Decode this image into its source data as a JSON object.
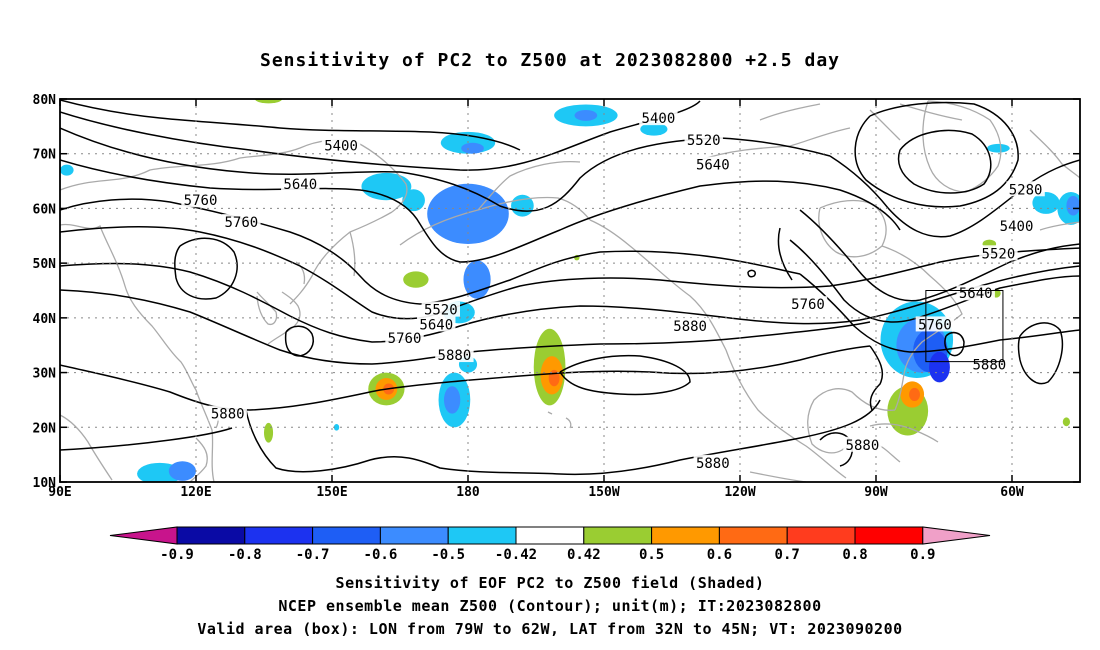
{
  "title": "Sensitivity of PC2 to Z500 at 2023082800 +2.5 day",
  "captions": [
    "Sensitivity of EOF PC2 to Z500 field (Shaded)",
    "NCEP ensemble mean Z500 (Contour); unit(m); IT:2023082800",
    "Valid area (box): LON from 79W to 62W, LAT from 32N to 45N; VT: 2023090200"
  ],
  "map": {
    "lon_range": [
      90,
      315
    ],
    "lat_range": [
      10,
      80
    ],
    "lon_ticks": [
      {
        "lon": 90,
        "label": "90E"
      },
      {
        "lon": 120,
        "label": "120E"
      },
      {
        "lon": 150,
        "label": "150E"
      },
      {
        "lon": 180,
        "label": "180"
      },
      {
        "lon": 210,
        "label": "150W"
      },
      {
        "lon": 240,
        "label": "120W"
      },
      {
        "lon": 270,
        "label": "90W"
      },
      {
        "lon": 300,
        "label": "60W"
      }
    ],
    "lat_ticks": [
      {
        "lat": 10,
        "label": "10N"
      },
      {
        "lat": 20,
        "label": "20N"
      },
      {
        "lat": 30,
        "label": "30N"
      },
      {
        "lat": 40,
        "label": "40N"
      },
      {
        "lat": 50,
        "label": "50N"
      },
      {
        "lat": 60,
        "label": "60N"
      },
      {
        "lat": 70,
        "label": "70N"
      },
      {
        "lat": 80,
        "label": "80N"
      }
    ],
    "grid": true,
    "valid_box": {
      "lon": [
        281,
        298
      ],
      "lat": [
        32,
        45
      ]
    }
  },
  "contour_labels": [
    {
      "text": "5400",
      "lon": 152,
      "lat": 71.5
    },
    {
      "text": "5640",
      "lon": 143,
      "lat": 64.5
    },
    {
      "text": "5760",
      "lon": 121,
      "lat": 61.5
    },
    {
      "text": "5760",
      "lon": 130,
      "lat": 57.5
    },
    {
      "text": "5520",
      "lon": 174,
      "lat": 41.5
    },
    {
      "text": "5640",
      "lon": 173,
      "lat": 38.8
    },
    {
      "text": "5760",
      "lon": 166,
      "lat": 36.3
    },
    {
      "text": "5880",
      "lon": 177,
      "lat": 33.2
    },
    {
      "text": "5880",
      "lon": 127,
      "lat": 22.5
    },
    {
      "text": "5400",
      "lon": 222,
      "lat": 76.5
    },
    {
      "text": "5520",
      "lon": 232,
      "lat": 72.5
    },
    {
      "text": "5640",
      "lon": 234,
      "lat": 68
    },
    {
      "text": "5760",
      "lon": 255,
      "lat": 42.5
    },
    {
      "text": "5880",
      "lon": 229,
      "lat": 38.5
    },
    {
      "text": "5880",
      "lon": 234,
      "lat": 13.5
    },
    {
      "text": "5880",
      "lon": 267,
      "lat": 16.8
    },
    {
      "text": "5280",
      "lon": 303,
      "lat": 63.5
    },
    {
      "text": "5400",
      "lon": 301,
      "lat": 56.8
    },
    {
      "text": "5520",
      "lon": 297,
      "lat": 51.8
    },
    {
      "text": "5640",
      "lon": 292,
      "lat": 44.5
    },
    {
      "text": "5760",
      "lon": 283,
      "lat": 38.8
    },
    {
      "text": "5880",
      "lon": 295,
      "lat": 31.5
    }
  ],
  "colorbar": {
    "labels": [
      "-0.9",
      "-0.8",
      "-0.7",
      "-0.6",
      "-0.5",
      "-0.42",
      "0.42",
      "0.5",
      "0.6",
      "0.7",
      "0.8",
      "0.9"
    ],
    "colors": [
      "#0a0aa5",
      "#1c32f0",
      "#1e5ef5",
      "#3c8cff",
      "#1ec8f5",
      "#ffffff",
      "#9acd32",
      "#ff9900",
      "#ff6a14",
      "#ff3c1e",
      "#ff0000"
    ],
    "low_end_color": "#c8148c",
    "high_end_color": "#f0a0c8"
  },
  "shading": [
    {
      "lon": 181,
      "lat": 58,
      "rx": 6.5,
      "ry": 3.8,
      "level": "-0.8"
    },
    {
      "lon": 180,
      "lat": 59,
      "rx": 9,
      "ry": 5.5,
      "level": "-0.6"
    },
    {
      "lon": 182,
      "lat": 47,
      "rx": 3,
      "ry": 3.5,
      "level": "-0.6"
    },
    {
      "lon": 178,
      "lat": 41,
      "rx": 3.5,
      "ry": 2,
      "level": "-0.5"
    },
    {
      "lon": 162,
      "lat": 64,
      "rx": 5.5,
      "ry": 2.5,
      "level": "-0.5"
    },
    {
      "lon": 168,
      "lat": 61.5,
      "rx": 2.5,
      "ry": 2,
      "level": "-0.5"
    },
    {
      "lon": 180,
      "lat": 72,
      "rx": 6,
      "ry": 2,
      "level": "-0.5"
    },
    {
      "lon": 181,
      "lat": 71,
      "rx": 2.5,
      "ry": 1,
      "level": "-0.6"
    },
    {
      "lon": 206,
      "lat": 77,
      "rx": 7,
      "ry": 2,
      "level": "-0.5"
    },
    {
      "lon": 206,
      "lat": 77,
      "rx": 2.5,
      "ry": 1,
      "level": "-0.6"
    },
    {
      "lon": 221,
      "lat": 74.5,
      "rx": 3,
      "ry": 1.2,
      "level": "-0.5"
    },
    {
      "lon": 192,
      "lat": 60.5,
      "rx": 2.5,
      "ry": 2,
      "level": "-0.5"
    },
    {
      "lon": 91.5,
      "lat": 67,
      "rx": 1.5,
      "ry": 1,
      "level": "-0.5"
    },
    {
      "lon": 177,
      "lat": 25,
      "rx": 3.5,
      "ry": 5,
      "level": "-0.5"
    },
    {
      "lon": 176.5,
      "lat": 25,
      "rx": 1.8,
      "ry": 2.5,
      "level": "-0.6"
    },
    {
      "lon": 180,
      "lat": 31.5,
      "rx": 2,
      "ry": 1.5,
      "level": "-0.5"
    },
    {
      "lon": 112,
      "lat": 11.5,
      "rx": 5,
      "ry": 2,
      "level": "-0.5"
    },
    {
      "lon": 117,
      "lat": 12,
      "rx": 3,
      "ry": 1.8,
      "level": "-0.6"
    },
    {
      "lon": 279,
      "lat": 36,
      "rx": 8,
      "ry": 7,
      "level": "-0.5"
    },
    {
      "lon": 280,
      "lat": 35,
      "rx": 5.5,
      "ry": 5,
      "level": "-0.6"
    },
    {
      "lon": 282,
      "lat": 34,
      "rx": 3.8,
      "ry": 4,
      "level": "-0.7"
    },
    {
      "lon": 284,
      "lat": 31,
      "rx": 2.3,
      "ry": 2.8,
      "level": "-0.8"
    },
    {
      "lon": 307.5,
      "lat": 61,
      "rx": 3,
      "ry": 2,
      "level": "-0.5"
    },
    {
      "lon": 313,
      "lat": 60,
      "rx": 3,
      "ry": 3,
      "level": "-0.5"
    },
    {
      "lon": 313.5,
      "lat": 60.5,
      "rx": 1.5,
      "ry": 1.8,
      "level": "-0.6"
    },
    {
      "lon": 297,
      "lat": 71,
      "rx": 2.5,
      "ry": 0.8,
      "level": "-0.5"
    },
    {
      "lon": 162,
      "lat": 27,
      "rx": 4,
      "ry": 3,
      "level": "0.42"
    },
    {
      "lon": 162,
      "lat": 27,
      "rx": 2.4,
      "ry": 2,
      "level": "0.5"
    },
    {
      "lon": 162.5,
      "lat": 27,
      "rx": 1.2,
      "ry": 1,
      "level": "0.6"
    },
    {
      "lon": 198,
      "lat": 31,
      "rx": 3.5,
      "ry": 7,
      "level": "0.42"
    },
    {
      "lon": 198.5,
      "lat": 29.5,
      "rx": 2.5,
      "ry": 3.5,
      "level": "0.5"
    },
    {
      "lon": 199,
      "lat": 29,
      "rx": 1.2,
      "ry": 1.5,
      "level": "0.6"
    },
    {
      "lon": 277,
      "lat": 23,
      "rx": 4.5,
      "ry": 4.5,
      "level": "0.42"
    },
    {
      "lon": 278,
      "lat": 26,
      "rx": 2.6,
      "ry": 2.4,
      "level": "0.5"
    },
    {
      "lon": 278.5,
      "lat": 26,
      "rx": 1.2,
      "ry": 1.2,
      "level": "0.6"
    },
    {
      "lon": 168.5,
      "lat": 47,
      "rx": 2.8,
      "ry": 1.5,
      "level": "0.42"
    },
    {
      "lon": 136,
      "lat": 80,
      "rx": 3,
      "ry": 0.8,
      "level": "0.42"
    },
    {
      "lon": 136,
      "lat": 19,
      "rx": 1,
      "ry": 1.8,
      "level": "0.42"
    },
    {
      "lon": 295,
      "lat": 53.5,
      "rx": 1.5,
      "ry": 0.8,
      "level": "0.42"
    },
    {
      "lon": 296.5,
      "lat": 44.5,
      "rx": 1,
      "ry": 0.8,
      "level": "0.42"
    },
    {
      "lon": 312,
      "lat": 21,
      "rx": 0.8,
      "ry": 0.8,
      "level": "0.42"
    },
    {
      "lon": 151,
      "lat": 20,
      "rx": 0.6,
      "ry": 0.6,
      "level": "-0.5"
    },
    {
      "lon": 204,
      "lat": 51,
      "rx": 0.6,
      "ry": 0.5,
      "level": "0.42"
    }
  ]
}
